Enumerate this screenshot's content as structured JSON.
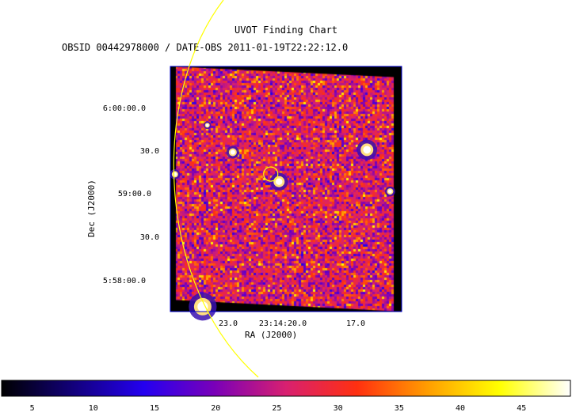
{
  "header": {
    "title": "UVOT Finding Chart",
    "subtitle": "OBSID 00442978000 / DATE-OBS 2011-01-19T22:22:12.0"
  },
  "chart_data": {
    "type": "heatmap",
    "title": "UVOT Finding Chart",
    "subtitle": "OBSID 00442978000 / DATE-OBS 2011-01-19T22:22:12.0",
    "xlabel": "RA (J2000)",
    "ylabel": "Dec (J2000)",
    "x_ticks": [
      "23.0",
      "23:14:20.0",
      "17.0"
    ],
    "y_ticks": [
      "6:00:00.0",
      "30.0",
      "59:00.0",
      "30.0",
      "5:58:00.0"
    ],
    "colorbar": {
      "ticks": [
        5,
        10,
        15,
        20,
        25,
        30,
        35,
        40,
        45
      ],
      "range": [
        2.5,
        49
      ],
      "colors": [
        "#000000",
        "#12007a",
        "#2400f0",
        "#7a00b8",
        "#d82070",
        "#ff3010",
        "#ff9e00",
        "#ffff00",
        "#ffffff"
      ]
    },
    "sources": [
      {
        "x": 0.85,
        "y": 0.34,
        "size": 8
      },
      {
        "x": 0.14,
        "y": 0.98,
        "size": 11
      },
      {
        "x": 0.47,
        "y": 0.47,
        "size": 7
      },
      {
        "x": 0.27,
        "y": 0.35,
        "size": 5
      },
      {
        "x": 0.95,
        "y": 0.51,
        "size": 4
      },
      {
        "x": 0.02,
        "y": 0.44,
        "size": 4
      },
      {
        "x": 0.16,
        "y": 0.24,
        "size": 3
      }
    ],
    "target_circle": {
      "x": 0.434,
      "y": 0.439
    },
    "grid": false,
    "colors": {
      "circle": "#ffff00",
      "frame": "#0000cc",
      "mask": "#000000"
    }
  }
}
